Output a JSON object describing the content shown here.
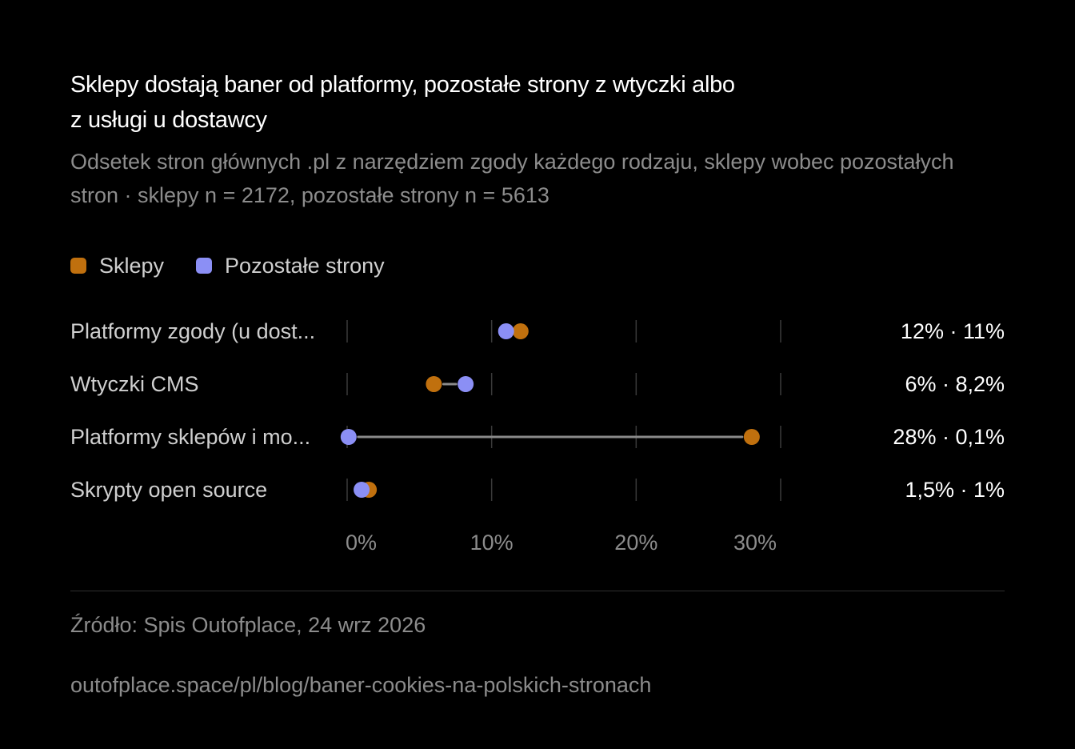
{
  "title_line1": "Sklepy dostają baner od platformy, pozostałe strony z wtyczki albo",
  "title_line2": "z usługi u dostawcy",
  "subtitle_line1": "Odsetek stron głównych .pl z narzędziem zgody każdego rodzaju, sklepy wobec pozostałych",
  "subtitle_line2": "stron · sklepy n = 2172, pozostałe strony n = 5613",
  "source": "Źródło: Spis Outofplace, 24 wrz 2026",
  "url": "outofplace.space/pl/blog/baner-cookies-na-polskich-stronach",
  "colors": {
    "background": "#000000",
    "sklepy": "#C0700E",
    "pozostale": "#8B8FF5",
    "connector": "#8a8a8a",
    "grid": "#3a3a3a",
    "label": "#cfcfcf",
    "muted": "#8c8c8c"
  },
  "chart_data": {
    "type": "dumbbell",
    "xlim": [
      0,
      30
    ],
    "x_ticks": [
      {
        "value": 0,
        "label": "0%"
      },
      {
        "value": 10,
        "label": "10%"
      },
      {
        "value": 20,
        "label": "20%"
      },
      {
        "value": 30,
        "label": "30%"
      }
    ],
    "grid": true,
    "legend": "top-left",
    "series": [
      {
        "name": "Sklepy",
        "color": "#C0700E"
      },
      {
        "name": "Pozostałe strony",
        "color": "#8B8FF5"
      }
    ],
    "rows": [
      {
        "category": "Platformy zgody (u dost...",
        "sklepy": 12,
        "pozostale": 11,
        "value_label": "12% · 11%"
      },
      {
        "category": "Wtyczki CMS",
        "sklepy": 6,
        "pozostale": 8.2,
        "value_label": "6% · 8,2%"
      },
      {
        "category": "Platformy sklepów i mo...",
        "sklepy": 28,
        "pozostale": 0.1,
        "value_label": "28% · 0,1%"
      },
      {
        "category": "Skrypty open source",
        "sklepy": 1.5,
        "pozostale": 1,
        "value_label": "1,5% · 1%"
      }
    ]
  }
}
